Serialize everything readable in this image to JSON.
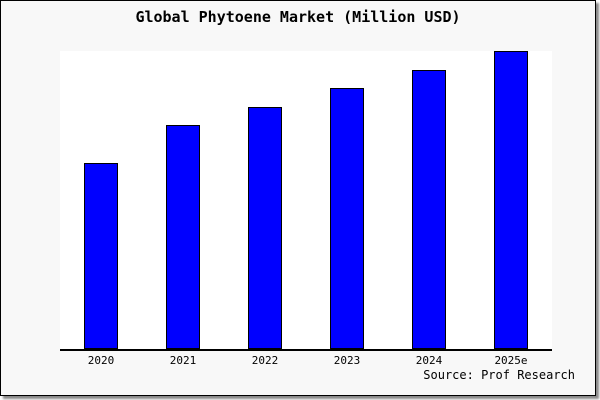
{
  "title": "Global Phytoene Market (Million USD)",
  "source_credit": "Source: Prof Research",
  "colors": {
    "bar_fill": "#0000ff",
    "bar_border": "#000000",
    "page_background": "#f8f8f8",
    "plot_background": "#ffffff",
    "axis": "#000000",
    "frame_border": "#000000",
    "frame_shadow": "#8a8a8a",
    "text": "#000000"
  },
  "chart_data": {
    "type": "bar",
    "title": "Global Phytoene Market (Million USD)",
    "categories": [
      "2020",
      "2021",
      "2022",
      "2023",
      "2024",
      "2025e"
    ],
    "values": [
      100,
      120,
      130,
      140,
      150,
      160
    ],
    "xlabel": "",
    "ylabel": "",
    "ylim": [
      0,
      160
    ],
    "y_axis_labeled": false,
    "grid": false,
    "legend": false,
    "source": "Source: Prof Research"
  }
}
